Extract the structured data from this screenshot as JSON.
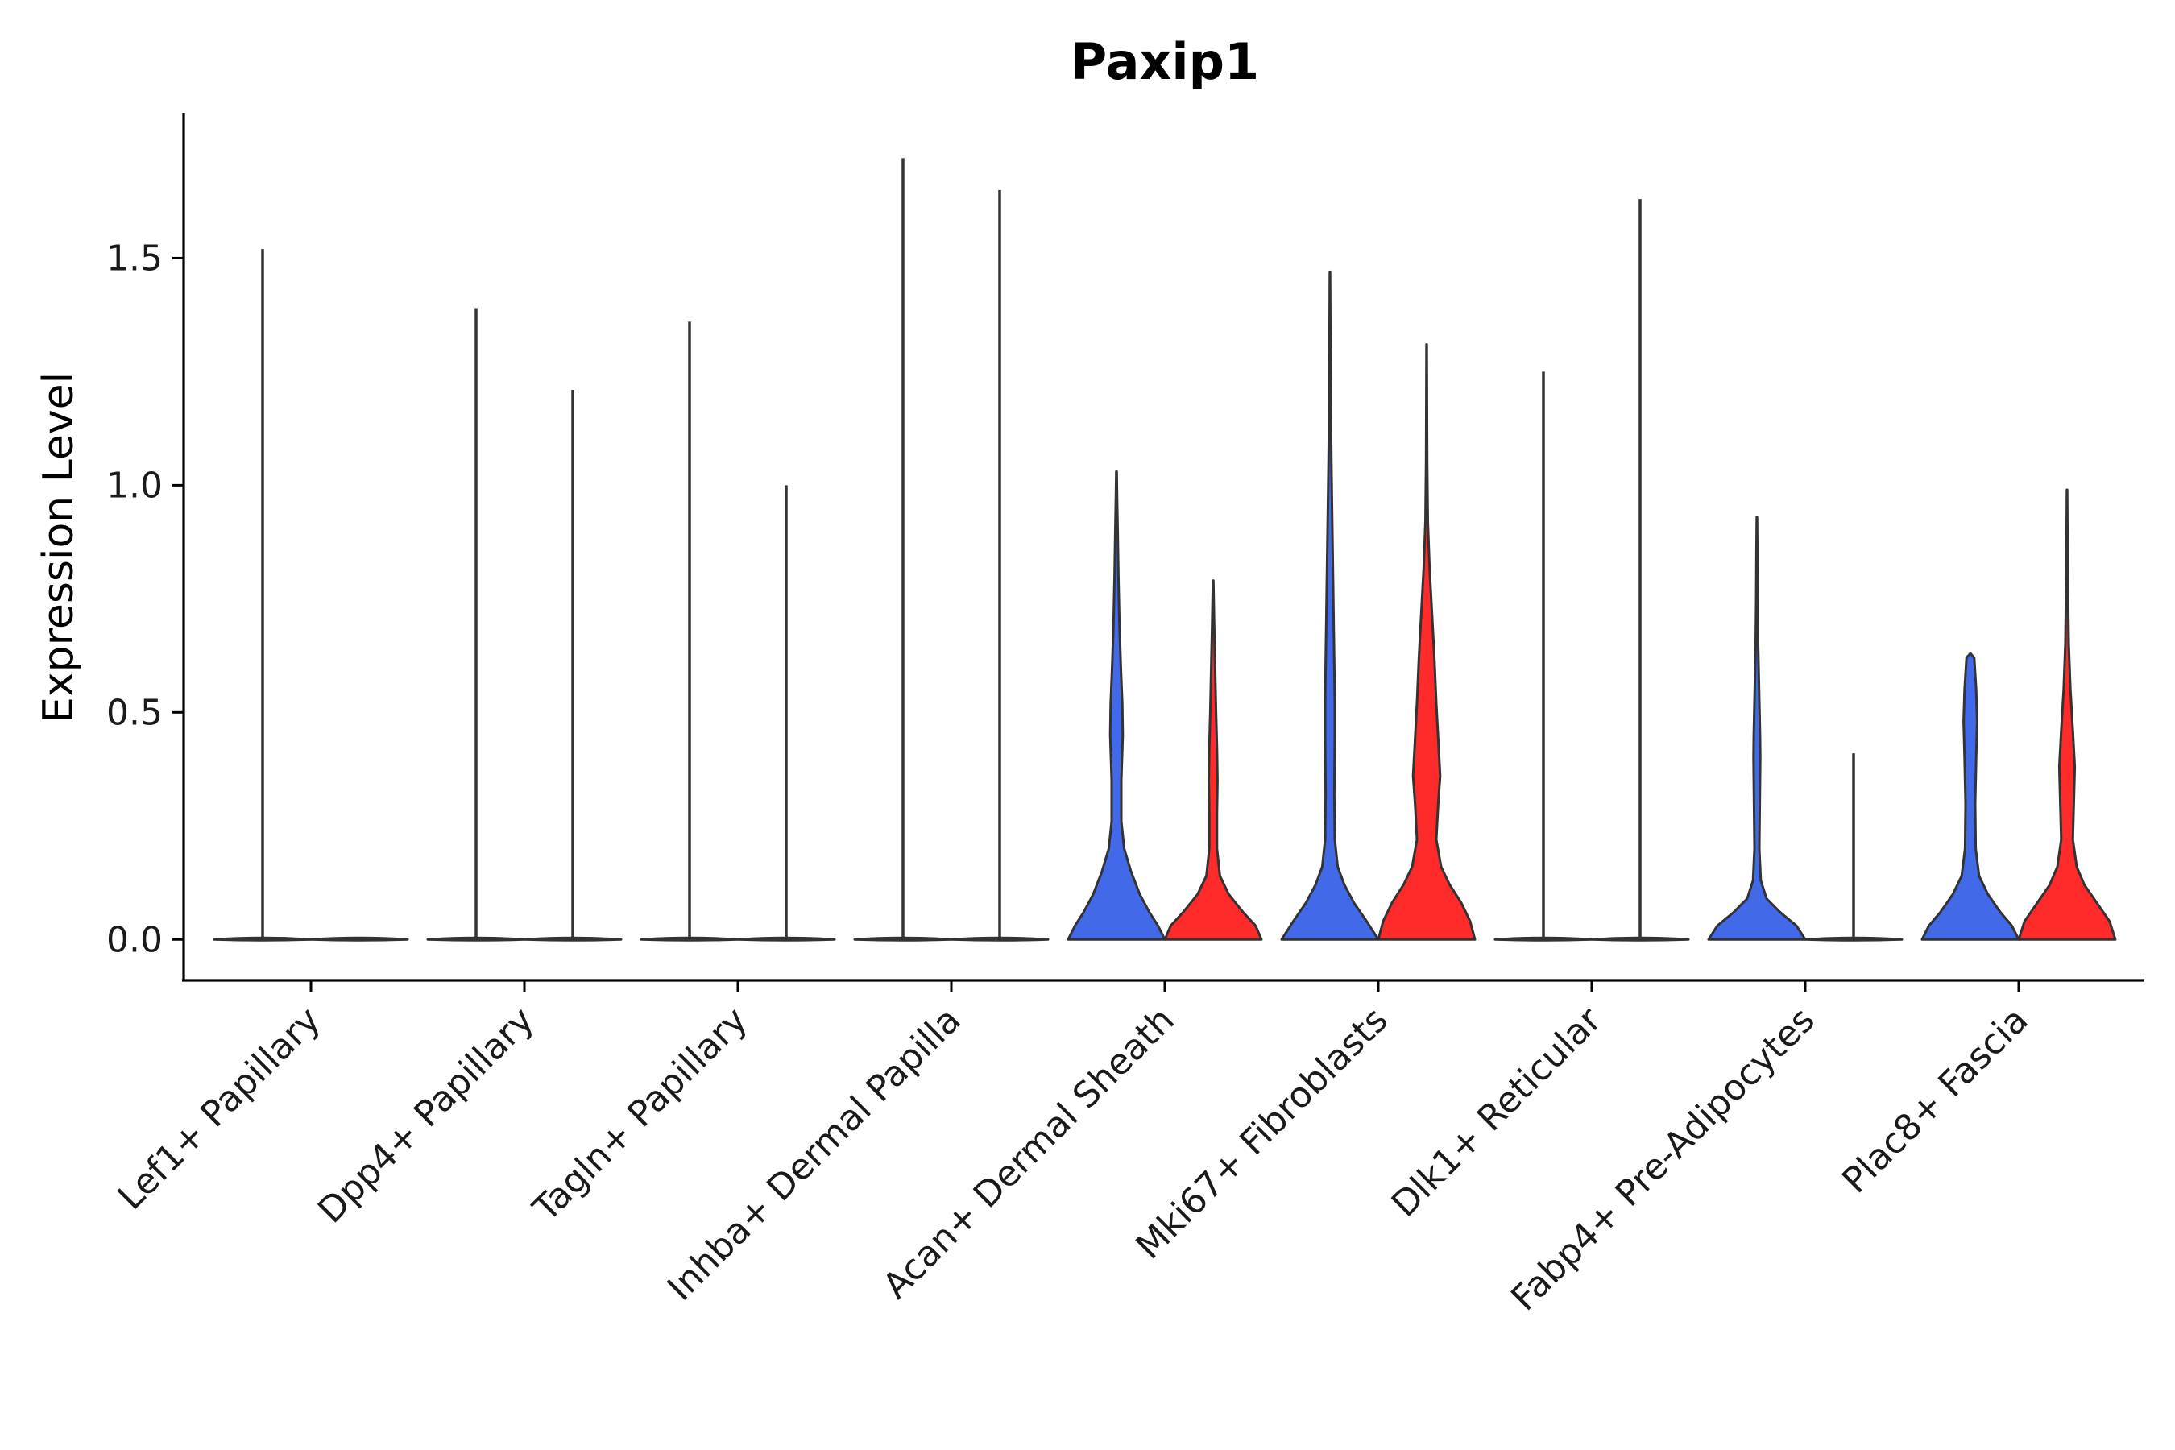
{
  "chart_data": {
    "type": "violin",
    "title": "Paxip1",
    "xlabel": "",
    "ylabel": "Expression Level",
    "ylim": [
      -0.09,
      1.82
    ],
    "yticks": [
      0.0,
      0.5,
      1.0,
      1.5
    ],
    "ytick_labels": [
      "0.0",
      "0.5",
      "1.0",
      "1.5"
    ],
    "grid": false,
    "legend": "none",
    "categories": [
      "Lef1+ Papillary",
      "Dpp4+ Papillary",
      "Tagln+ Papillary",
      "Inhba+ Dermal Papilla",
      "Acan+ Dermal Sheath",
      "Mki67+ Fibroblasts",
      "Dlk1+ Reticular",
      "Fabp4+ Pre-Adipocytes",
      "Plac8+ Fascia"
    ],
    "series_colors": {
      "left": "#4169E8",
      "right": "#FF2A2A",
      "thin": "#333333"
    },
    "groups": [
      {
        "category": "Lef1+ Papillary",
        "violins": [
          {
            "side": "left",
            "max": 1.52,
            "filled": false,
            "density": []
          },
          {
            "side": "right",
            "max": 0.0,
            "filled": false,
            "density": []
          }
        ]
      },
      {
        "category": "Dpp4+ Papillary",
        "violins": [
          {
            "side": "left",
            "max": 1.39,
            "filled": false,
            "density": []
          },
          {
            "side": "right",
            "max": 1.21,
            "filled": false,
            "density": []
          }
        ]
      },
      {
        "category": "Tagln+ Papillary",
        "violins": [
          {
            "side": "left",
            "max": 1.36,
            "filled": false,
            "density": []
          },
          {
            "side": "right",
            "max": 1.0,
            "filled": false,
            "density": []
          }
        ]
      },
      {
        "category": "Inhba+ Dermal Papilla",
        "violins": [
          {
            "side": "left",
            "max": 1.72,
            "filled": false,
            "density": []
          },
          {
            "side": "right",
            "max": 1.65,
            "filled": false,
            "density": []
          }
        ]
      },
      {
        "category": "Acan+ Dermal Sheath",
        "violins": [
          {
            "side": "left",
            "max": 1.03,
            "filled": true,
            "density": [
              [
                0,
                1.0
              ],
              [
                0.03,
                0.86
              ],
              [
                0.06,
                0.68
              ],
              [
                0.1,
                0.48
              ],
              [
                0.15,
                0.3
              ],
              [
                0.2,
                0.16
              ],
              [
                0.26,
                0.1
              ],
              [
                0.35,
                0.1
              ],
              [
                0.45,
                0.13
              ],
              [
                0.52,
                0.12
              ],
              [
                0.6,
                0.09
              ],
              [
                0.7,
                0.06
              ],
              [
                0.8,
                0.04
              ],
              [
                0.9,
                0.025
              ],
              [
                0.98,
                0.012
              ],
              [
                1.03,
                0.005
              ]
            ]
          },
          {
            "side": "right",
            "max": 0.79,
            "filled": true,
            "density": [
              [
                0,
                1.0
              ],
              [
                0.03,
                0.88
              ],
              [
                0.06,
                0.62
              ],
              [
                0.1,
                0.32
              ],
              [
                0.14,
                0.14
              ],
              [
                0.2,
                0.08
              ],
              [
                0.28,
                0.08
              ],
              [
                0.35,
                0.09
              ],
              [
                0.42,
                0.08
              ],
              [
                0.5,
                0.06
              ],
              [
                0.6,
                0.04
              ],
              [
                0.7,
                0.02
              ],
              [
                0.79,
                0.005
              ]
            ]
          }
        ]
      },
      {
        "category": "Mki67+ Fibroblasts",
        "violins": [
          {
            "side": "left",
            "max": 1.47,
            "filled": true,
            "density": [
              [
                0,
                1.0
              ],
              [
                0.04,
                0.76
              ],
              [
                0.08,
                0.5
              ],
              [
                0.12,
                0.3
              ],
              [
                0.16,
                0.16
              ],
              [
                0.22,
                0.1
              ],
              [
                0.32,
                0.09
              ],
              [
                0.45,
                0.1
              ],
              [
                0.52,
                0.1
              ],
              [
                0.6,
                0.09
              ],
              [
                0.75,
                0.07
              ],
              [
                0.9,
                0.05
              ],
              [
                1.05,
                0.03
              ],
              [
                1.2,
                0.015
              ],
              [
                1.35,
                0.008
              ],
              [
                1.47,
                0.003
              ]
            ]
          },
          {
            "side": "right",
            "max": 1.31,
            "filled": true,
            "density": [
              [
                0,
                1.0
              ],
              [
                0.04,
                0.9
              ],
              [
                0.08,
                0.72
              ],
              [
                0.12,
                0.48
              ],
              [
                0.16,
                0.3
              ],
              [
                0.22,
                0.2
              ],
              [
                0.3,
                0.24
              ],
              [
                0.36,
                0.28
              ],
              [
                0.44,
                0.24
              ],
              [
                0.52,
                0.2
              ],
              [
                0.62,
                0.16
              ],
              [
                0.72,
                0.11
              ],
              [
                0.82,
                0.06
              ],
              [
                0.92,
                0.025
              ],
              [
                1.05,
                0.012
              ],
              [
                1.2,
                0.006
              ],
              [
                1.31,
                0.003
              ]
            ]
          }
        ]
      },
      {
        "category": "Dlk1+ Reticular",
        "violins": [
          {
            "side": "left",
            "max": 1.25,
            "filled": false,
            "density": []
          },
          {
            "side": "right",
            "max": 1.63,
            "filled": false,
            "density": []
          }
        ]
      },
      {
        "category": "Fabp4+ Pre-Adipocytes",
        "violins": [
          {
            "side": "left",
            "max": 0.93,
            "filled": true,
            "density": [
              [
                0,
                1.0
              ],
              [
                0.03,
                0.82
              ],
              [
                0.06,
                0.48
              ],
              [
                0.09,
                0.2
              ],
              [
                0.13,
                0.08
              ],
              [
                0.2,
                0.05
              ],
              [
                0.3,
                0.06
              ],
              [
                0.4,
                0.07
              ],
              [
                0.45,
                0.065
              ],
              [
                0.55,
                0.045
              ],
              [
                0.65,
                0.025
              ],
              [
                0.75,
                0.015
              ],
              [
                0.85,
                0.01
              ],
              [
                0.93,
                0.004
              ]
            ]
          },
          {
            "side": "right",
            "max": 0.41,
            "filled": false,
            "density": []
          }
        ]
      },
      {
        "category": "Plac8+ Fascia",
        "violins": [
          {
            "side": "left",
            "max": 0.63,
            "filled": true,
            "density": [
              [
                0,
                1.0
              ],
              [
                0.03,
                0.86
              ],
              [
                0.06,
                0.62
              ],
              [
                0.1,
                0.36
              ],
              [
                0.14,
                0.18
              ],
              [
                0.2,
                0.11
              ],
              [
                0.3,
                0.1
              ],
              [
                0.4,
                0.12
              ],
              [
                0.48,
                0.14
              ],
              [
                0.55,
                0.12
              ],
              [
                0.62,
                0.08
              ],
              [
                0.63,
                0.0
              ]
            ]
          },
          {
            "side": "right",
            "max": 0.99,
            "filled": true,
            "density": [
              [
                0,
                1.0
              ],
              [
                0.04,
                0.88
              ],
              [
                0.08,
                0.62
              ],
              [
                0.12,
                0.36
              ],
              [
                0.16,
                0.2
              ],
              [
                0.22,
                0.12
              ],
              [
                0.3,
                0.14
              ],
              [
                0.38,
                0.16
              ],
              [
                0.46,
                0.12
              ],
              [
                0.55,
                0.07
              ],
              [
                0.65,
                0.035
              ],
              [
                0.8,
                0.015
              ],
              [
                0.99,
                0.004
              ]
            ]
          }
        ]
      }
    ]
  }
}
